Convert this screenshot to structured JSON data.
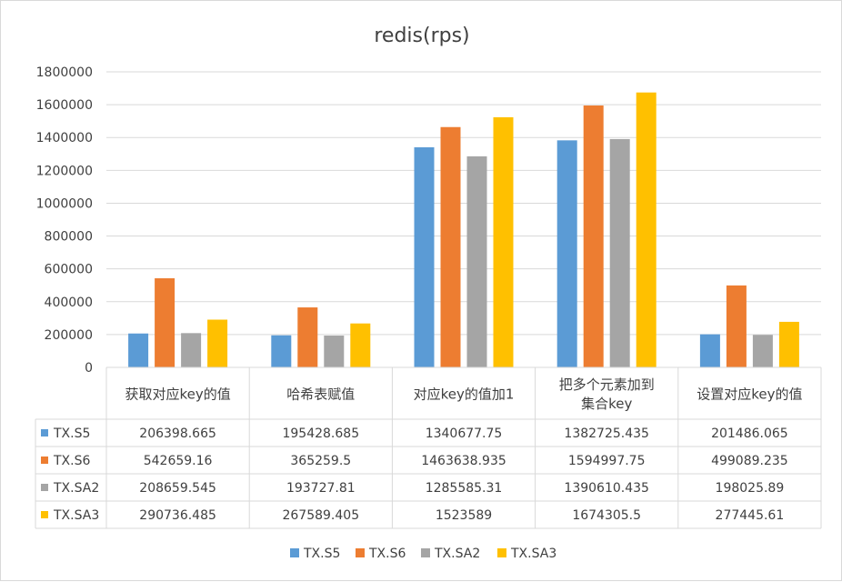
{
  "chart_data": {
    "type": "bar",
    "title": "redis(rps)",
    "ylim": [
      0,
      1800000
    ],
    "yticks": [
      0,
      200000,
      400000,
      600000,
      800000,
      1000000,
      1200000,
      1400000,
      1600000,
      1800000
    ],
    "grid": true,
    "legend_position": "bottom",
    "categories": [
      "获取对应key的值",
      "哈希表赋值",
      "对应key的值加1",
      "把多个元素加到集合key",
      "设置对应key的值"
    ],
    "category_lines": [
      [
        "获取对应key的值"
      ],
      [
        "哈希表赋值"
      ],
      [
        "对应key的值加1"
      ],
      [
        "把多个元素加到",
        "集合key"
      ],
      [
        "设置对应key的值"
      ]
    ],
    "series": [
      {
        "name": "TX.S5",
        "color": "#5B9BD5",
        "values": [
          206398.665,
          195428.685,
          1340677.75,
          1382725.435,
          201486.065
        ],
        "labels": [
          "206398.665",
          "195428.685",
          "1340677.75",
          "1382725.435",
          "201486.065"
        ]
      },
      {
        "name": "TX.S6",
        "color": "#ED7D31",
        "values": [
          542659.16,
          365259.5,
          1463638.935,
          1594997.75,
          499089.235
        ],
        "labels": [
          "542659.16",
          "365259.5",
          "1463638.935",
          "1594997.75",
          "499089.235"
        ]
      },
      {
        "name": "TX.SA2",
        "color": "#A5A5A5",
        "values": [
          208659.545,
          193727.81,
          1285585.31,
          1390610.435,
          198025.89
        ],
        "labels": [
          "208659.545",
          "193727.81",
          "1285585.31",
          "1390610.435",
          "198025.89"
        ]
      },
      {
        "name": "TX.SA3",
        "color": "#FFC000",
        "values": [
          290736.485,
          267589.405,
          1523589,
          1674305.5,
          277445.61
        ],
        "labels": [
          "290736.485",
          "267589.405",
          "1523589",
          "1674305.5",
          "277445.61"
        ]
      }
    ]
  }
}
